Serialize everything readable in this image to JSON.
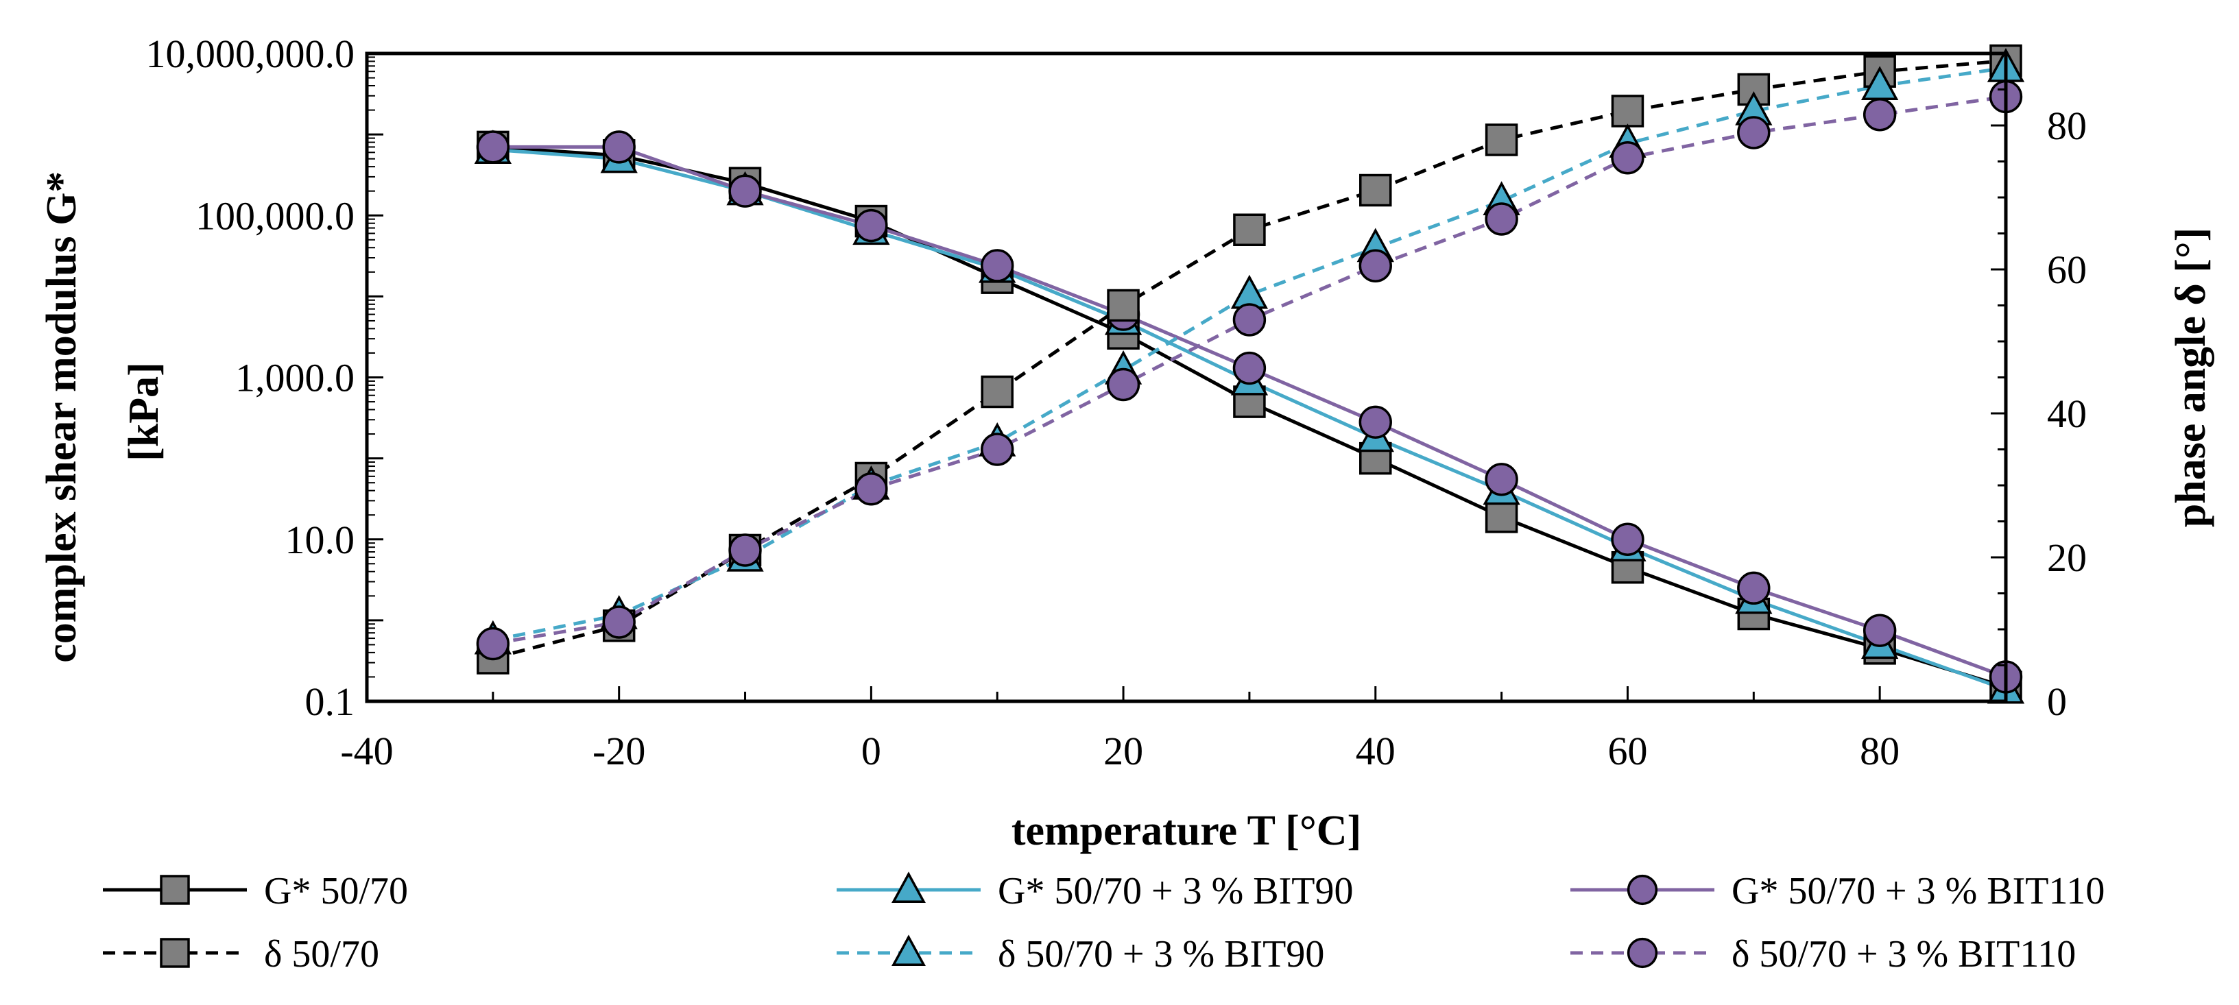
{
  "chart_data": {
    "type": "line",
    "xlabel": "temperature T [°C]",
    "ylabel": "complex shear modulus G* [kPa]",
    "ylabel_lines": [
      "complex shear modulus G*",
      "[kPa]"
    ],
    "y2label": "phase angle δ [°]",
    "xlim": [
      -40,
      90
    ],
    "x_ticks": [
      -40,
      -20,
      0,
      20,
      40,
      60,
      80
    ],
    "ylim": [
      0.1,
      10000000
    ],
    "y_scale": "log",
    "y_ticks": [
      0.1,
      10,
      1000,
      100000,
      10000000
    ],
    "y_tick_labels": [
      "0.1",
      "10.0",
      "1,000.0",
      "100,000.0",
      "10,000,000.0"
    ],
    "y2lim": [
      0,
      90
    ],
    "y2_ticks": [
      0,
      20,
      40,
      60,
      80
    ],
    "grid": false,
    "legend_position": "bottom",
    "x": [
      -30,
      -20,
      -10,
      0,
      10,
      20,
      30,
      40,
      50,
      60,
      70,
      80,
      90
    ],
    "series": [
      {
        "name": "G* 50/70",
        "axis": "left",
        "line": "solid",
        "marker": "square",
        "color": "#000000",
        "marker_fill": "#7f7f7f",
        "values": [
          700000,
          550000,
          250000,
          85000,
          17000,
          3500,
          500,
          100,
          19,
          4.5,
          1.2,
          0.45,
          0.15
        ]
      },
      {
        "name": "G* 50/70 + 3 % BIT90",
        "axis": "left",
        "line": "solid",
        "marker": "triangle",
        "color": "#46a9c8",
        "marker_fill": "#46a9c8",
        "values": [
          650000,
          500000,
          200000,
          65000,
          22000,
          5000,
          900,
          180,
          40,
          8,
          1.8,
          0.5,
          0.14
        ]
      },
      {
        "name": "G* 50/70 + 3 % BIT110",
        "axis": "left",
        "line": "solid",
        "marker": "circle",
        "color": "#8064a2",
        "marker_fill": "#8064a2",
        "values": [
          700000,
          700000,
          200000,
          75000,
          24000,
          6000,
          1300,
          280,
          55,
          10,
          2.5,
          0.75,
          0.2
        ]
      },
      {
        "name": "δ 50/70",
        "axis": "right",
        "line": "dashed",
        "marker": "square",
        "color": "#000000",
        "marker_fill": "#7f7f7f",
        "values": [
          6,
          10.5,
          21,
          31,
          43,
          55,
          65.5,
          71,
          78,
          82,
          85,
          87.5,
          89
        ]
      },
      {
        "name": "δ 50/70 + 3 % BIT90",
        "axis": "right",
        "line": "dashed",
        "marker": "triangle",
        "color": "#46a9c8",
        "marker_fill": "#46a9c8",
        "values": [
          8.5,
          12,
          20,
          30,
          36,
          46,
          56.5,
          63,
          69.5,
          77.5,
          82,
          85.5,
          88
        ]
      },
      {
        "name": "δ 50/70 + 3 % BIT110",
        "axis": "right",
        "line": "dashed",
        "marker": "circle",
        "color": "#8064a2",
        "marker_fill": "#8064a2",
        "values": [
          8,
          11,
          21,
          29.5,
          35,
          44,
          53,
          60.5,
          67,
          75.5,
          79,
          81.5,
          84
        ]
      }
    ]
  }
}
